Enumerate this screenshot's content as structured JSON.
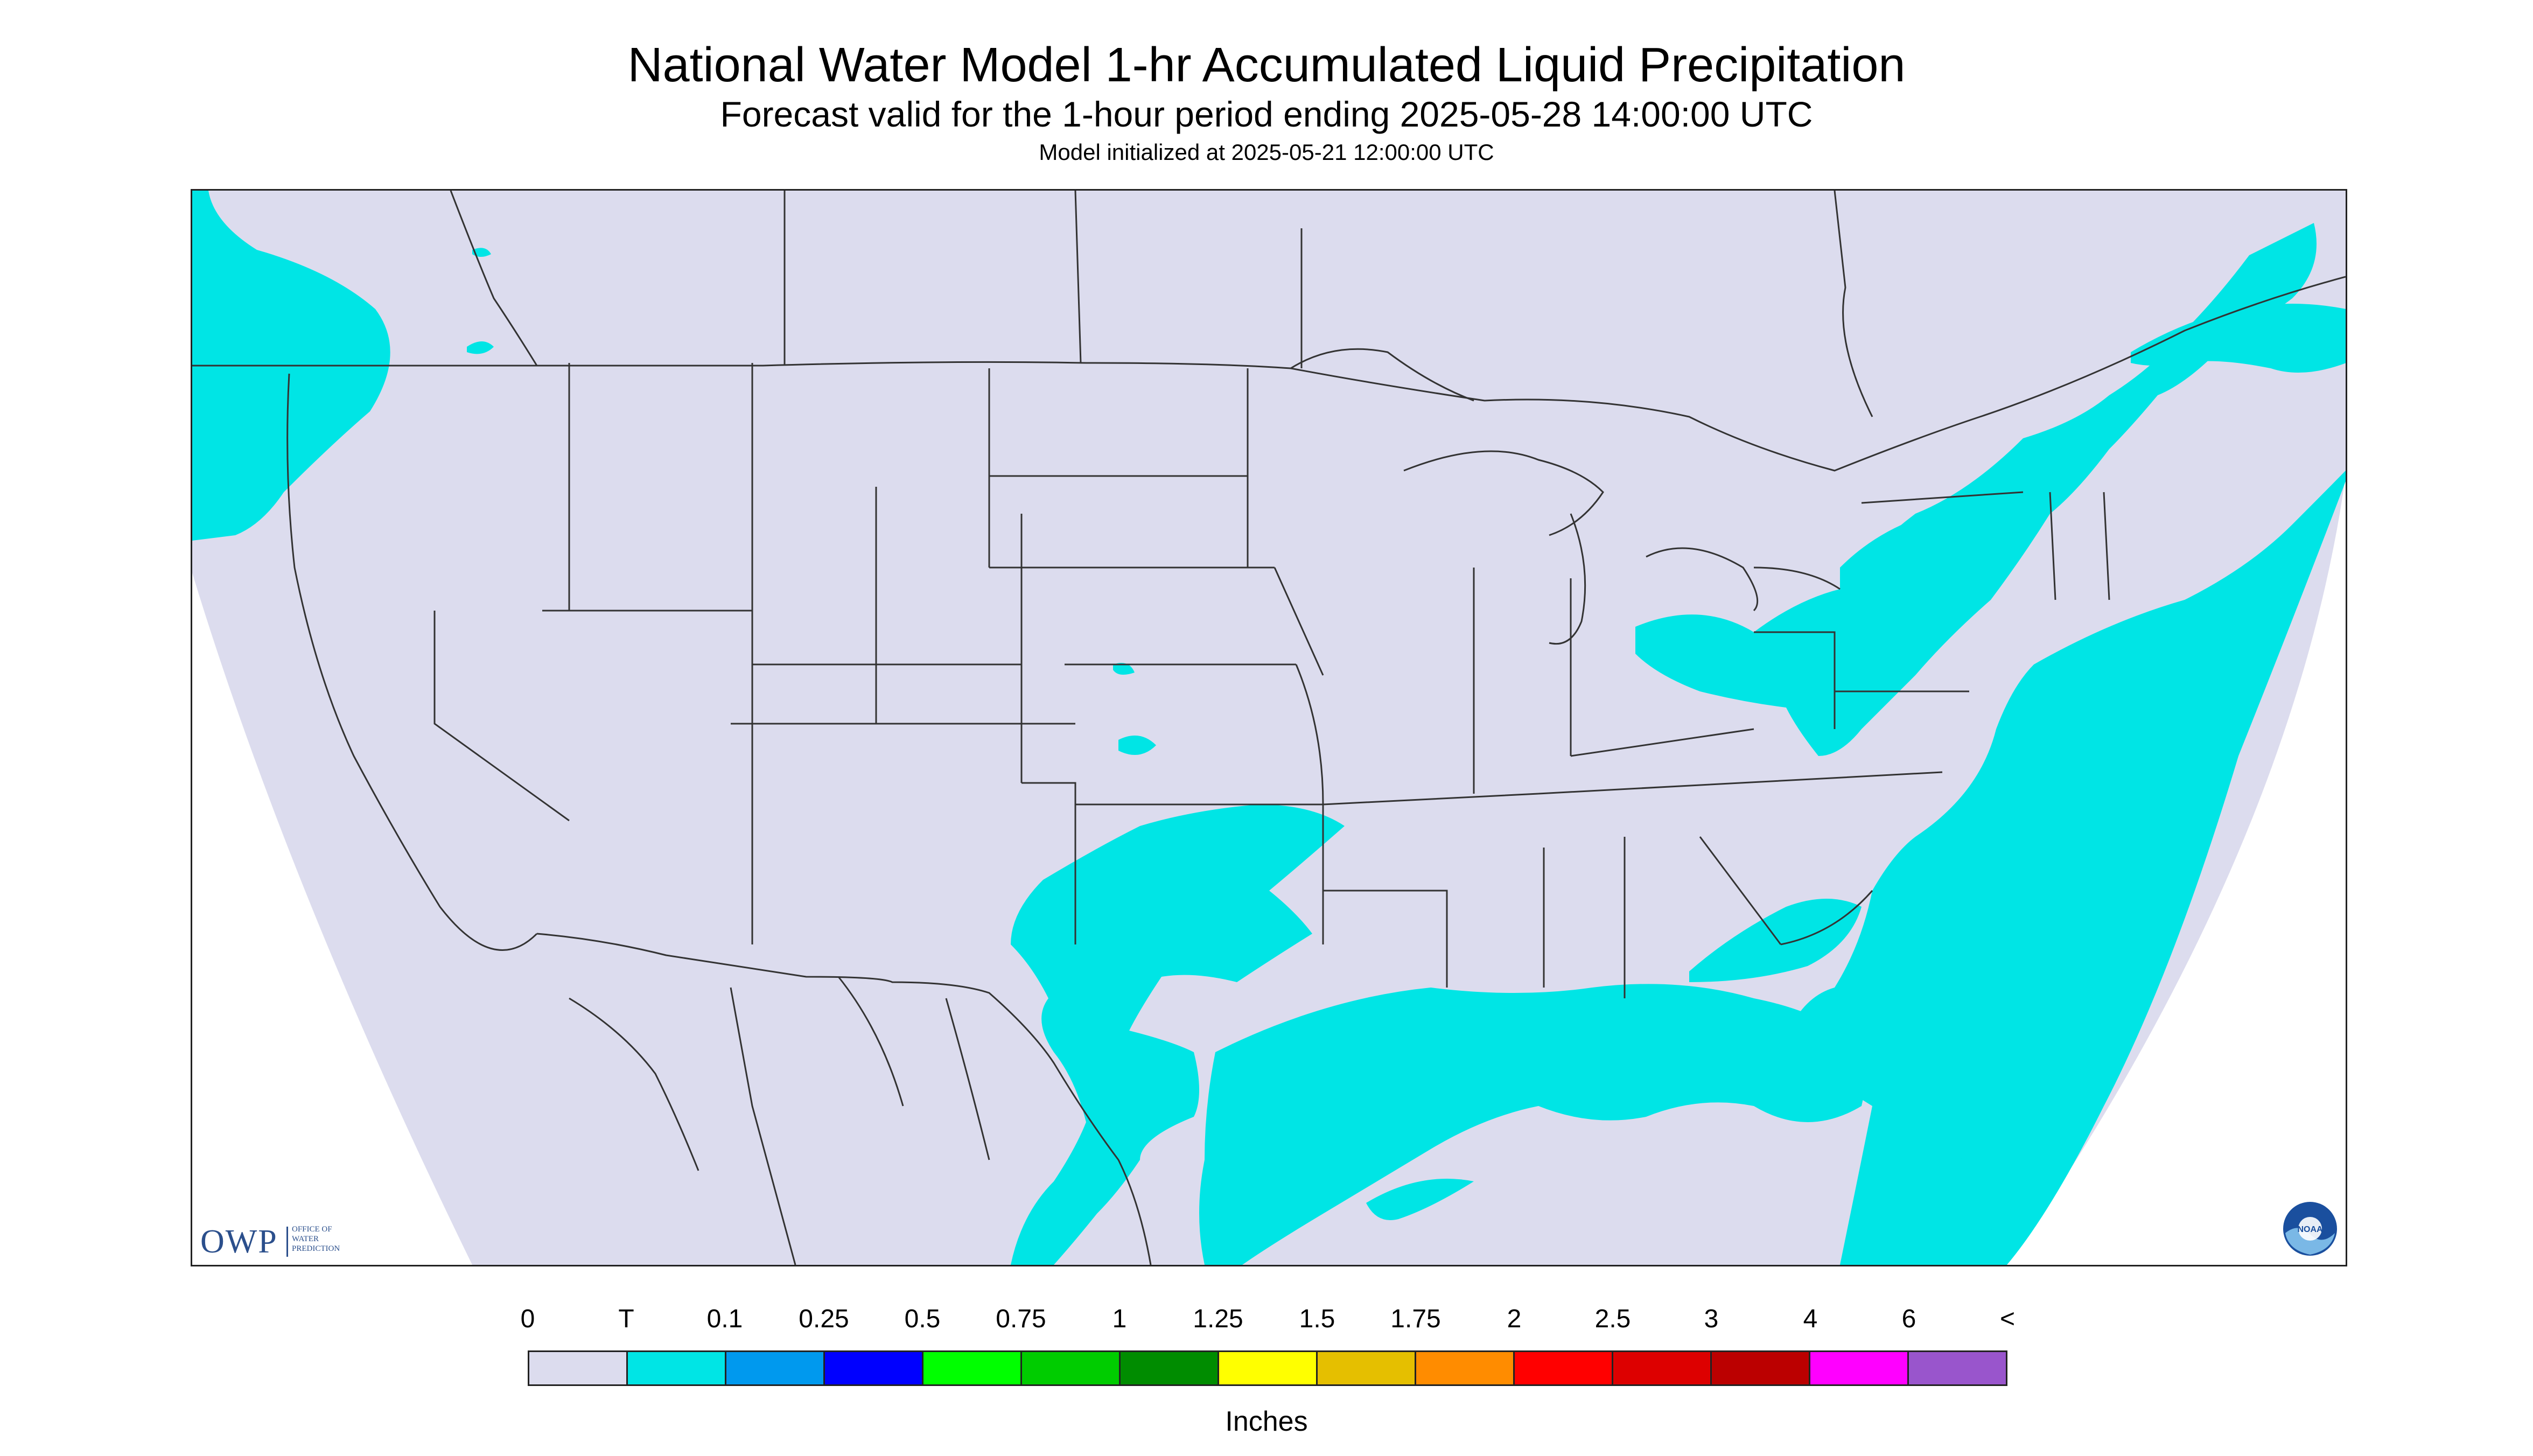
{
  "header": {
    "title": "National Water Model 1-hr Accumulated Liquid Precipitation",
    "subtitle": "Forecast valid for the 1-hour period ending 2025-05-28 14:00:00 UTC",
    "init": "Model initialized at 2025-05-21 12:00:00 UTC"
  },
  "logos": {
    "owp_main": "OWP",
    "owp_sub_lines": [
      "OFFICE OF",
      "WATER",
      "PREDICTION"
    ],
    "noaa_text": "NOAA"
  },
  "legend": {
    "units": "Inches",
    "labels": [
      "0",
      "T",
      "0.1",
      "0.25",
      "0.5",
      "0.75",
      "1",
      "1.25",
      "1.5",
      "1.75",
      "2",
      "2.5",
      "3",
      "4",
      "6",
      "<"
    ],
    "colors": [
      "#dcdcee",
      "#00e5e5",
      "#0099ee",
      "#0000ff",
      "#00ff00",
      "#00cc00",
      "#008c00",
      "#ffff00",
      "#e5bf00",
      "#ff8c00",
      "#ff0000",
      "#dd0000",
      "#bb0000",
      "#ff00ff",
      "#9955cc"
    ]
  },
  "map_colors": {
    "domain": "#dcdcee",
    "outside": "#ffffff",
    "precip_trace": "#00e5e5",
    "borders": "#333333"
  }
}
